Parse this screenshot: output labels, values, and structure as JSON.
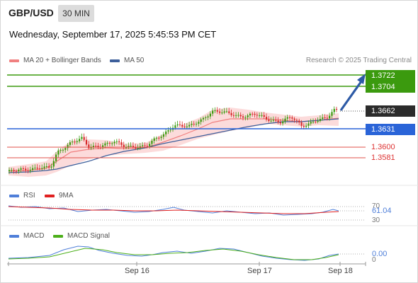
{
  "header": {
    "symbol": "GBP/USD",
    "timeframe": "30 MIN",
    "datetime": "Wednesday, September 17, 2025 5:45:53 PM CET"
  },
  "legend": {
    "ma20_label": "MA 20 + Bollinger Bands",
    "ma50_label": "MA 50",
    "copyright": "Research © 2025 Trading Central"
  },
  "levels": {
    "r2": "1.3722",
    "r1": "1.3704",
    "last": "1.3662",
    "pivot": "1.3631",
    "s1": "1.3600",
    "s2": "1.3581"
  },
  "rsi": {
    "label": "RSI",
    "ma_label": "9MA",
    "value": "61.04",
    "level_70": "70",
    "level_30": "30"
  },
  "macd": {
    "label": "MACD",
    "signal_label": "MACD Signal",
    "value": "0.00",
    "zero_label": "0"
  },
  "x_axis": [
    "Sep 16",
    "Sep 17",
    "Sep 18"
  ],
  "colors": {
    "resistance": "#3b9a0e",
    "pivot": "#2a64d8",
    "support": "#e0504a",
    "last_price_bg": "#2b2b2b",
    "candle_up": "#3b9a0e",
    "candle_down": "#d62c2c",
    "ma20": "#f08080",
    "ma50": "#3d5f9b",
    "bollinger_fill": "#fbd5d5",
    "rsi": "#4f7fd9",
    "rsi_ma": "#e02020",
    "macd": "#4f7fd9",
    "macd_signal": "#4caf1a",
    "arrow": "#2d5aa6"
  }
}
